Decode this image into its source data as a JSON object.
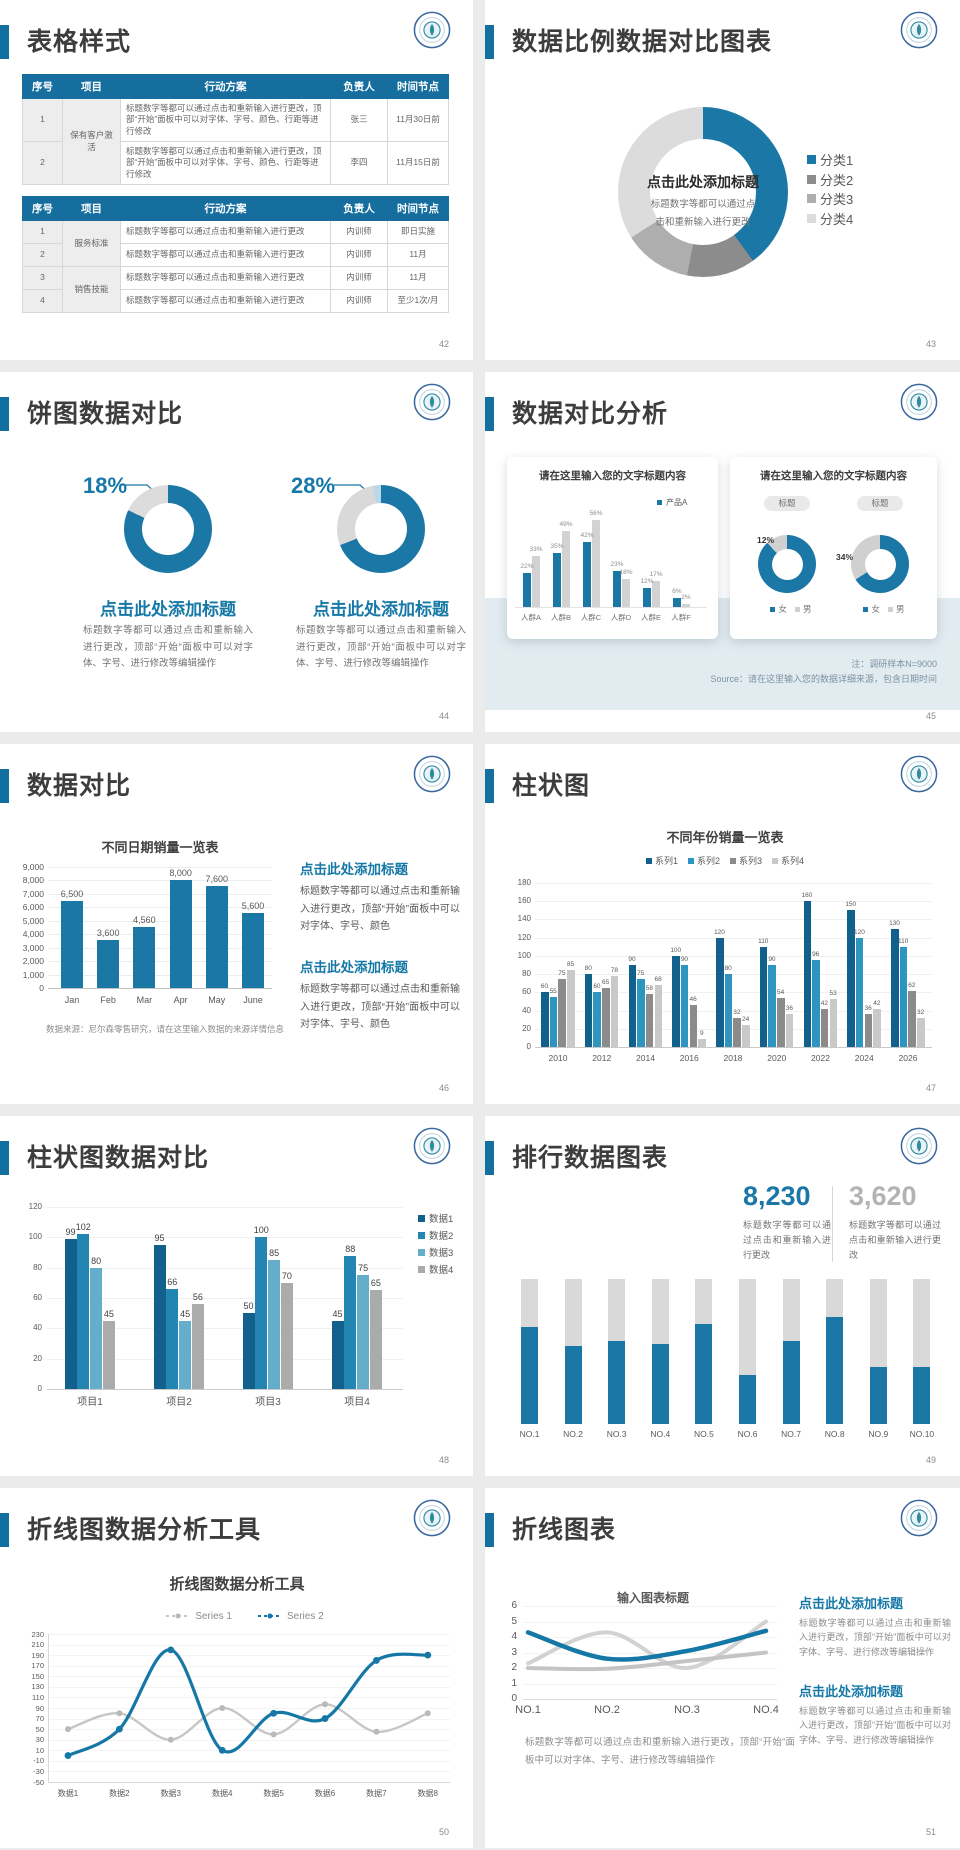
{
  "page_background": "#ebebeb",
  "colors": {
    "accent_blue": "#1270a0",
    "table_header_blue": "#156e9e",
    "chart_blue": "#1a77a6",
    "chart_blue_dark": "#11618c",
    "chart_blue_mid": "#2385b2",
    "chart_blue_light": "#64aecb",
    "pale_blue": "#b9d8e8",
    "dark_gray": "#8c8c8c",
    "mid_gray": "#ababab",
    "light_gray": "#d9d9d9",
    "text_dark": "#404040",
    "text_gray": "#737373",
    "band_blue": "#e1ebf0"
  },
  "slides": {
    "s42": {
      "title": "表格样式",
      "page": "42",
      "tables": [
        {
          "headers": [
            "序号",
            "项目",
            "行动方案",
            "负责人",
            "时间节点"
          ],
          "groups": [
            {
              "project": "保有客户激活",
              "rows": [
                {
                  "seq": "1",
                  "plan": "标题数字等都可以通过点击和重新输入进行更改，顶部“开始”面板中可以对字体、字号、颜色、行距等进行修改",
                  "owner": "张三",
                  "time": "11月30日前"
                },
                {
                  "seq": "2",
                  "plan": "标题数字等都可以通过点击和重新输入进行更改，顶部“开始”面板中可以对字体、字号、颜色、行距等进行修改",
                  "owner": "李四",
                  "time": "11月15日前"
                }
              ]
            }
          ]
        },
        {
          "headers": [
            "序号",
            "项目",
            "行动方案",
            "负责人",
            "时间节点"
          ],
          "groups": [
            {
              "project": "服务标准",
              "rows": [
                {
                  "seq": "1",
                  "plan": "标题数字等都可以通过点击和重新输入进行更改",
                  "owner": "内训师",
                  "time": "即日实施"
                },
                {
                  "seq": "2",
                  "plan": "标题数字等都可以通过点击和重新输入进行更改",
                  "owner": "内训师",
                  "time": "11月"
                }
              ]
            },
            {
              "project": "销售技能",
              "rows": [
                {
                  "seq": "3",
                  "plan": "标题数字等都可以通过点击和重新输入进行更改",
                  "owner": "内训师",
                  "time": "11月"
                },
                {
                  "seq": "4",
                  "plan": "标题数字等都可以通过点击和重新输入进行更改",
                  "owner": "内训师",
                  "time": "至少1次/月"
                }
              ]
            }
          ]
        }
      ]
    },
    "s43": {
      "title": "数据比例数据对比图表",
      "page": "43",
      "center_title": "点击此处添加标题",
      "center_body": "标题数字等都可以通过点击和重新输入进行更改",
      "chart_data": {
        "type": "pie",
        "donut": true,
        "legend_position": "right",
        "segments": [
          {
            "label": "分类1",
            "value": 40,
            "color": "#1a77a6"
          },
          {
            "label": "分类2",
            "value": 13,
            "color": "#8c8c8c"
          },
          {
            "label": "分类3",
            "value": 13,
            "color": "#aeaeae"
          },
          {
            "label": "分类4",
            "value": 34,
            "color": "#dcdcdc"
          }
        ]
      }
    },
    "s44": {
      "title": "饼图数据对比",
      "page": "44",
      "chart_data": [
        {
          "type": "pie",
          "donut": true,
          "highlight_label": "18%",
          "segments": [
            {
              "label": "主体",
              "value": 82,
              "color": "#1a77a6"
            },
            {
              "label": "高亮占比",
              "value": 18,
              "color": "#dcdcdc"
            }
          ]
        },
        {
          "type": "pie",
          "donut": true,
          "highlight_label": "28%",
          "segments": [
            {
              "label": "主体",
              "value": 69,
              "color": "#1a77a6"
            },
            {
              "label": "高亮占比",
              "value": 28,
              "color": "#d9d9d9"
            },
            {
              "label": "浅蓝",
              "value": 3,
              "color": "#b9d8e8"
            }
          ]
        }
      ],
      "blocks": [
        {
          "heading": "点击此处添加标题",
          "body": "标题数字等都可以通过点击和重新输入进行更改，顶部“开始”面板中可以对字体、字号、进行修改等编辑操作"
        },
        {
          "heading": "点击此处添加标题",
          "body": "标题数字等都可以通过点击和重新输入进行更改，顶部“开始”面板中可以对字体、字号、进行修改等编辑操作"
        }
      ]
    },
    "s45": {
      "title": "数据对比分析",
      "page": "45",
      "note1": "注：调研样本N=9000",
      "note2": "Source：请在这里输入您的数据详细来源，包含日期时间",
      "cards": [
        {
          "heading": "请在这里输入您的文字标题内容",
          "legend": [
            "产品A"
          ],
          "chart_data": {
            "type": "bar",
            "categories": [
              "人群A",
              "人群B",
              "人群C",
              "人群D",
              "人群E",
              "人群F"
            ],
            "series": [
              {
                "name": "产品A",
                "color": "#1a77a6",
                "values": [
                  22,
                  35,
                  42,
                  23,
                  12,
                  6
                ],
                "labels": [
                  "22%",
                  "35%",
                  "42%",
                  "23%",
                  "12%",
                  "6%"
                ]
              },
              {
                "name": "",
                "color": "#d2d2d2",
                "values": [
                  33,
                  49,
                  56,
                  18,
                  17,
                  2
                ],
                "labels": [
                  "33%",
                  "49%",
                  "56%",
                  "18%",
                  "17%",
                  "2%"
                ]
              }
            ],
            "ylim": [
              0,
              60
            ]
          }
        },
        {
          "heading": "请在这里输入您的文字标题内容",
          "pills": [
            "标题",
            "标题"
          ],
          "legend": [
            "女",
            "男"
          ],
          "chart_data": [
            {
              "type": "pie",
              "donut": true,
              "highlight_label": "12%",
              "segments": [
                {
                  "label": "女",
                  "value": 88,
                  "color": "#1a77a6"
                },
                {
                  "label": "男",
                  "value": 12,
                  "color": "#d0d0d0"
                }
              ]
            },
            {
              "type": "pie",
              "donut": true,
              "highlight_label": "34%",
              "segments": [
                {
                  "label": "女",
                  "value": 66,
                  "color": "#1a77a6"
                },
                {
                  "label": "男",
                  "value": 34,
                  "color": "#d0d0d0"
                }
              ]
            }
          ]
        }
      ]
    },
    "s46": {
      "title": "数据对比",
      "page": "46",
      "source": "数据来源：尼尔森零售研究，请在这里输入数据的来源详情信息",
      "chart_data": {
        "type": "bar",
        "title": "不同日期销量一览表",
        "categories": [
          "Jan",
          "Feb",
          "Mar",
          "Apr",
          "May",
          "June"
        ],
        "values": [
          6500,
          3600,
          4560,
          8000,
          7600,
          5600
        ],
        "value_labels": [
          "6,500",
          "3,600",
          "4,560",
          "8,000",
          "7,600",
          "5,600"
        ],
        "ylim": [
          0,
          9000
        ],
        "yticks": [
          "9,000",
          "8,000",
          "7,000",
          "6,000",
          "5,000",
          "4,000",
          "3,000",
          "2,000",
          "1,000",
          "0"
        ],
        "bar_color": "#1a77a6"
      },
      "blocks": [
        {
          "heading": "点击此处添加标题",
          "body": "标题数字等都可以通过点击和重新输入进行更改，顶部“开始”面板中可以对字体、字号、颜色"
        },
        {
          "heading": "点击此处添加标题",
          "body": "标题数字等都可以通过点击和重新输入进行更改，顶部“开始”面板中可以对字体、字号、颜色"
        }
      ]
    },
    "s47": {
      "title": "柱状图",
      "page": "47",
      "chart_data": {
        "type": "bar",
        "title": "不同年份销量一览表",
        "categories": [
          "2010",
          "2012",
          "2014",
          "2016",
          "2018",
          "2020",
          "2022",
          "2024",
          "2026"
        ],
        "series": [
          {
            "name": "系列1",
            "color": "#11618c",
            "values": [
              60,
              80,
              90,
              100,
              120,
              110,
              160,
              150,
              130
            ]
          },
          {
            "name": "系列2",
            "color": "#2e95c0",
            "values": [
              55,
              60,
              75,
              90,
              80,
              90,
              96,
              120,
              110
            ]
          },
          {
            "name": "系列3",
            "color": "#8b8b8b",
            "values": [
              75,
              65,
              58,
              46,
              32,
              54,
              42,
              36,
              62
            ]
          },
          {
            "name": "系列4",
            "color": "#c9c9c9",
            "values": [
              85,
              78,
              68,
              9,
              24,
              36,
              53,
              42,
              32
            ]
          }
        ],
        "ylim": [
          0,
          180
        ],
        "ytick_step": 20
      }
    },
    "s48": {
      "title": "柱状图数据对比",
      "page": "48",
      "chart_data": {
        "type": "bar",
        "categories": [
          "项目1",
          "项目2",
          "项目3",
          "项目4"
        ],
        "series": [
          {
            "name": "数据1",
            "color": "#11618c",
            "values": [
              99,
              95,
              50,
              45
            ]
          },
          {
            "name": "数据2",
            "color": "#2385b2",
            "values": [
              102,
              66,
              100,
              88
            ]
          },
          {
            "name": "数据3",
            "color": "#64aecb",
            "values": [
              80,
              45,
              85,
              75
            ]
          },
          {
            "name": "数据4",
            "color": "#ababab",
            "values": [
              45,
              56,
              70,
              65
            ]
          }
        ],
        "ylim": [
          0,
          120
        ],
        "ytick_step": 20
      }
    },
    "s49": {
      "title": "排行数据图表",
      "page": "49",
      "stats": [
        {
          "value": "8,230",
          "color": "#1a77a6",
          "body": "标题数字等都可以通过点击和重新输入进行更改"
        },
        {
          "value": "3,620",
          "color": "#b3b3b3",
          "body": "标题数字等都可以通过点击和重新输入进行更改"
        }
      ],
      "chart_data": {
        "type": "bar",
        "stacked": true,
        "categories": [
          "NO.1",
          "NO.2",
          "NO.3",
          "NO.4",
          "NO.5",
          "NO.6",
          "NO.7",
          "NO.8",
          "NO.9",
          "NO.10"
        ],
        "series": [
          {
            "color": "#1a77a6",
            "values": [
              67,
              54,
              57,
              55,
              69,
              34,
              57,
              74,
              39,
              39
            ]
          },
          {
            "color": "#d9d9d9",
            "values": [
              33,
              46,
              43,
              45,
              31,
              66,
              43,
              26,
              61,
              61
            ]
          }
        ],
        "ylim": [
          0,
          100
        ]
      }
    },
    "s50": {
      "title": "折线图数据分析工具",
      "page": "50",
      "chart_data": {
        "type": "line",
        "title": "折线图数据分析工具",
        "categories": [
          "数据1",
          "数据2",
          "数据3",
          "数据4",
          "数据5",
          "数据6",
          "数据7",
          "数据8"
        ],
        "series": [
          {
            "name": "Series 1",
            "color": "#c6c6c6",
            "dot_color": "#b9b9b9",
            "values": [
              50,
              80,
              30,
              90,
              40,
              97,
              45,
              80
            ]
          },
          {
            "name": "Series 2",
            "color": "#1477a6",
            "dot_color": "#1477a6",
            "values": [
              0,
              50,
              200,
              10,
              80,
              70,
              180,
              190
            ]
          }
        ],
        "ylim": [
          -50,
          230
        ],
        "ytick_step": 20
      }
    },
    "s51": {
      "title": "折线图表",
      "page": "51",
      "caption": "标题数字等都可以通过点击和重新输入进行更改，顶部“开始”面板中可以对字体、字号、进行修改等编辑操作",
      "chart_data": {
        "type": "line",
        "title": "输入图表标题",
        "categories": [
          "NO.1",
          "NO.2",
          "NO.3",
          "NO.4"
        ],
        "series": [
          {
            "name": "",
            "color": "#1477a6",
            "values": [
              4.3,
              2.6,
              3.1,
              4.4
            ]
          },
          {
            "name": "",
            "color": "#d2d2d2",
            "values": [
              2.3,
              4.3,
              2.0,
              5.0
            ]
          },
          {
            "name": "",
            "color": "#c4c4c4",
            "values": [
              2.0,
              1.95,
              2.45,
              3.0
            ]
          }
        ],
        "ylim": [
          0,
          6
        ],
        "yticks": [
          "6",
          "5",
          "4",
          "3",
          "2",
          "1",
          "0"
        ]
      },
      "blocks": [
        {
          "heading": "点击此处添加标题",
          "body": "标题数字等都可以通过点击和重新输入进行更改，顶部“开始”面板中可以对字体、字号、进行修改等编辑操作"
        },
        {
          "heading": "点击此处添加标题",
          "body": "标题数字等都可以通过点击和重新输入进行更改，顶部“开始”面板中可以对字体、字号、进行修改等编辑操作"
        }
      ]
    }
  }
}
